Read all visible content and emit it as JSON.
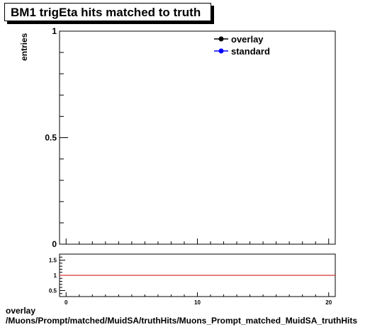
{
  "title": "BM1 trigEta hits matched to truth",
  "footer": {
    "line1": "overlay",
    "line2": "/Muons/Prompt/matched/MuidSA/truthHits/Muons_Prompt_matched_MuidSA_truthHits"
  },
  "chart_data": [
    {
      "type": "line",
      "title": "BM1 trigEta hits matched to truth",
      "ylabel": "entries",
      "xlabel": "",
      "xlim": [
        -0.5,
        20.5
      ],
      "ylim": [
        0,
        1
      ],
      "y_ticks": [
        "0",
        "0.5",
        "1"
      ],
      "grid": false,
      "legend_position": "top-right",
      "series": [
        {
          "name": "overlay",
          "color": "#000000",
          "marker": "filled-circle",
          "values": []
        },
        {
          "name": "standard",
          "color": "#0000ff",
          "marker": "filled-circle",
          "values": []
        }
      ]
    },
    {
      "type": "line",
      "xlim": [
        -0.5,
        20.5
      ],
      "ylim": [
        0.3,
        1.7
      ],
      "x_ticks": [
        "0",
        "10",
        "20"
      ],
      "y_ticks": [
        "0.5",
        "1",
        "1.5"
      ],
      "reference_line": {
        "y": 1,
        "color": "#cc0000"
      },
      "grid": false
    }
  ]
}
